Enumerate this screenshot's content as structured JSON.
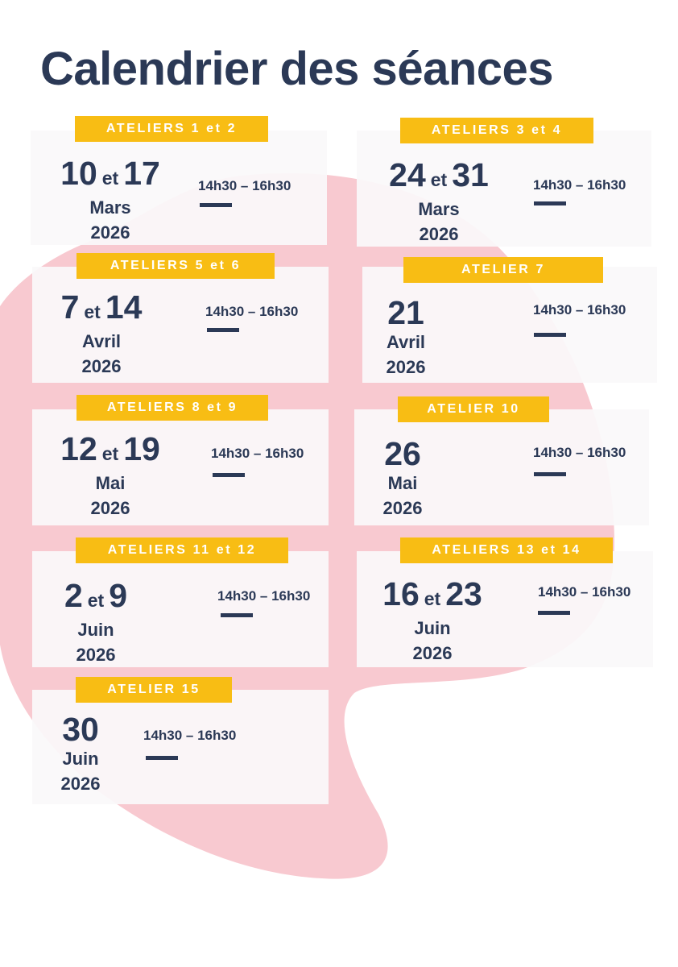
{
  "page": {
    "title": "Calendrier des séances"
  },
  "colors": {
    "navy": "#2b3956",
    "yellow": "#f8bd14",
    "pink": "#f8c9d0",
    "card": "#faf9fa"
  },
  "sessions": [
    {
      "tag": "ATELIERS 1 et 2",
      "day1": "10",
      "sep": "et",
      "day2": "17",
      "month": "Mars",
      "year": "2026",
      "time": "14h30 – 16h30"
    },
    {
      "tag": "ATELIERS 3 et 4",
      "day1": "24",
      "sep": "et",
      "day2": "31",
      "month": "Mars",
      "year": "2026",
      "time": "14h30 – 16h30"
    },
    {
      "tag": "ATELIERS 5 et 6",
      "day1": "7",
      "sep": "et",
      "day2": "14",
      "month": "Avril",
      "year": "2026",
      "time": "14h30 – 16h30"
    },
    {
      "tag": "ATELIER 7",
      "day1": "21",
      "month": "Avril",
      "year": "2026",
      "time": "14h30 – 16h30"
    },
    {
      "tag": "ATELIERS 8 et 9",
      "day1": "12",
      "sep": "et",
      "day2": "19",
      "month": "Mai",
      "year": "2026",
      "time": "14h30 – 16h30"
    },
    {
      "tag": "ATELIER 10",
      "day1": "26",
      "month": "Mai",
      "year": "2026",
      "time": "14h30 – 16h30"
    },
    {
      "tag": "ATELIERS 11 et 12",
      "day1": "2",
      "sep": "et",
      "day2": "9",
      "month": "Juin",
      "year": "2026",
      "time": "14h30 – 16h30"
    },
    {
      "tag": "ATELIERS 13 et 14",
      "day1": "16",
      "sep": "et",
      "day2": "23",
      "month": "Juin",
      "year": "2026",
      "time": "14h30 – 16h30"
    },
    {
      "tag": "ATELIER 15",
      "day1": "30",
      "month": "Juin",
      "year": "2026",
      "time": "14h30 – 16h30"
    }
  ]
}
